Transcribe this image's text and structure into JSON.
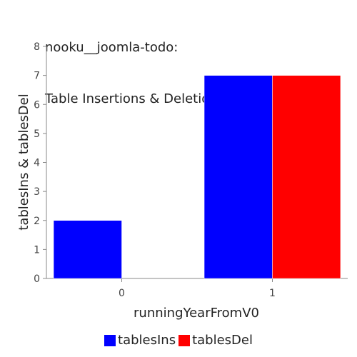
{
  "chart_data": {
    "type": "bar",
    "title_lines": [
      "nooku__joomla-todo:",
      "Table Insertions & Deletions per Year"
    ],
    "xlabel": "runningYearFromV0",
    "ylabel": "tablesIns & tablesDel",
    "categories": [
      "0",
      "1"
    ],
    "series": [
      {
        "name": "tablesIns",
        "values": [
          2,
          7
        ],
        "color": "#0000ff"
      },
      {
        "name": "tablesDel",
        "values": [
          0,
          7
        ],
        "color": "#ff0000"
      }
    ],
    "ylim": [
      0,
      8
    ],
    "yticks": [
      "0",
      "1",
      "2",
      "3",
      "4",
      "5",
      "6",
      "7",
      "8"
    ],
    "grid": false,
    "legend_position": "bottom"
  }
}
